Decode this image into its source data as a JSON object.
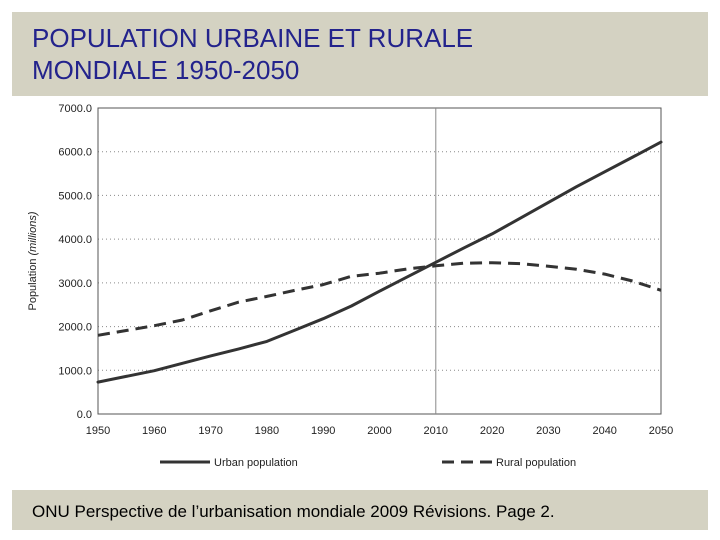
{
  "slide": {
    "title": "POPULATION URBAINE ET RURALE\nMONDIALE 1950-2050",
    "source": "ONU Perspective de l’urbanisation mondiale 2009 Révisions. Page 2."
  },
  "colors": {
    "band": "#d4d2c2",
    "title": "#23238c",
    "series": "#333333"
  },
  "chart_data": {
    "type": "line",
    "title": "",
    "xlabel": "",
    "ylabel_prefix": "Population ",
    "ylabel_unit": "(millions)",
    "xlim": [
      1950,
      2050
    ],
    "ylim": [
      0,
      7000
    ],
    "x_ticks": [
      "1950",
      "1960",
      "1970",
      "1980",
      "1990",
      "2000",
      "2010",
      "2020",
      "2030",
      "2040",
      "2050"
    ],
    "y_ticks": [
      "0.0",
      "1000.0",
      "2000.0",
      "3000.0",
      "4000.0",
      "5000.0",
      "6000.0",
      "7000.0"
    ],
    "vertical_marker": 2010,
    "grid": "horizontal dotted",
    "legend_position": "bottom",
    "x": [
      1950,
      1955,
      1960,
      1965,
      1970,
      1975,
      1980,
      1985,
      1990,
      1995,
      2000,
      2005,
      2010,
      2015,
      2020,
      2025,
      2030,
      2035,
      2040,
      2045,
      2050
    ],
    "series": [
      {
        "name": "Urban population",
        "style": "solid",
        "values": [
          730,
          860,
          990,
          1160,
          1330,
          1490,
          1660,
          1920,
          2180,
          2470,
          2810,
          3140,
          3470,
          3800,
          4120,
          4480,
          4840,
          5200,
          5540,
          5880,
          6220
        ]
      },
      {
        "name": "Rural population",
        "style": "dashed",
        "values": [
          1800,
          1910,
          2020,
          2150,
          2360,
          2560,
          2690,
          2830,
          2960,
          3150,
          3220,
          3320,
          3390,
          3450,
          3460,
          3440,
          3380,
          3310,
          3200,
          3040,
          2830
        ]
      }
    ]
  }
}
